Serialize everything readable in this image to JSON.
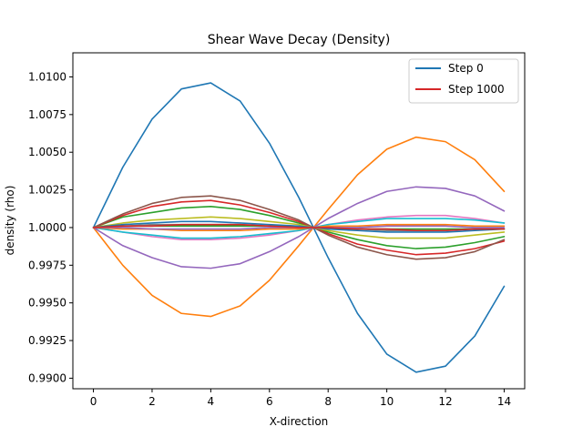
{
  "chart_data": {
    "type": "line",
    "title": "Shear Wave Decay (Density)",
    "xlabel": "X-direction",
    "ylabel": "density (rho)",
    "xlim": [
      -0.7,
      14.7
    ],
    "ylim": [
      0.9893,
      1.0116
    ],
    "xticks": [
      0,
      2,
      4,
      6,
      8,
      10,
      12,
      14
    ],
    "yticks": [
      0.99,
      0.9925,
      0.995,
      0.9975,
      1.0,
      1.0025,
      1.005,
      1.0075,
      1.01
    ],
    "ytick_labels": [
      "0.9900",
      "0.9925",
      "0.9950",
      "0.9975",
      "1.0000",
      "1.0025",
      "1.0050",
      "1.0075",
      "1.0100"
    ],
    "grid": false,
    "legend": {
      "placement": "top-right",
      "entries": [
        "Step 0",
        "Step 1000"
      ]
    },
    "x": [
      0,
      1,
      2,
      3,
      4,
      5,
      6,
      7,
      7.5,
      8,
      9,
      10,
      11,
      12,
      13,
      14
    ],
    "series": [
      {
        "name": "Step 0",
        "color": "#1f77b4",
        "values": [
          1.0,
          1.004,
          1.0072,
          1.0092,
          1.0096,
          1.0084,
          1.0056,
          1.002,
          1.0,
          0.998,
          0.9943,
          0.9916,
          0.9904,
          0.9908,
          0.9928,
          0.9961
        ]
      },
      {
        "color": "#ff7f0e",
        "values": [
          1.0,
          0.9975,
          0.9955,
          0.9943,
          0.9941,
          0.9948,
          0.9965,
          0.9988,
          1.0,
          1.0012,
          1.0035,
          1.0052,
          1.006,
          1.0057,
          1.0045,
          1.0024
        ]
      },
      {
        "color": "#2ca02c",
        "values": [
          1.0,
          1.0007,
          1.001,
          1.0013,
          1.0014,
          1.0012,
          1.0008,
          1.0003,
          1.0,
          0.9997,
          0.9992,
          0.9988,
          0.9986,
          0.9987,
          0.999,
          0.9994
        ]
      },
      {
        "color": "#d62728",
        "values": [
          1.0,
          1.0008,
          1.0014,
          1.0017,
          1.0018,
          1.0015,
          1.001,
          1.0004,
          1.0,
          0.9996,
          0.9989,
          0.9985,
          0.9982,
          0.9983,
          0.9986,
          0.9991
        ]
      },
      {
        "color": "#9467bd",
        "values": [
          1.0,
          0.9988,
          0.998,
          0.9974,
          0.9973,
          0.9976,
          0.9984,
          0.9994,
          1.0,
          1.0006,
          1.0016,
          1.0024,
          1.0027,
          1.0026,
          1.0021,
          1.0011
        ]
      },
      {
        "color": "#8c564b",
        "values": [
          1.0,
          1.0009,
          1.0016,
          1.002,
          1.0021,
          1.0018,
          1.0012,
          1.0005,
          1.0,
          0.9995,
          0.9987,
          0.9982,
          0.9979,
          0.998,
          0.9984,
          0.9992
        ]
      },
      {
        "color": "#e377c2",
        "values": [
          1.0,
          0.9997,
          0.9994,
          0.9992,
          0.9992,
          0.9993,
          0.9995,
          0.9998,
          1.0,
          1.0002,
          1.0005,
          1.0007,
          1.0008,
          1.0008,
          1.0006,
          1.0003
        ]
      },
      {
        "color": "#7f7f7f",
        "values": [
          1.0,
          1.0001,
          1.0002,
          1.0002,
          1.0002,
          1.0002,
          1.0001,
          1.0001,
          1.0,
          0.9999,
          0.9999,
          0.9998,
          0.9998,
          0.9998,
          0.9999,
          0.9999
        ]
      },
      {
        "color": "#bcbd22",
        "values": [
          1.0,
          1.0003,
          1.0005,
          1.0006,
          1.0007,
          1.0006,
          1.0004,
          1.0002,
          1.0,
          0.9998,
          0.9995,
          0.9993,
          0.9993,
          0.9993,
          0.9995,
          0.9997
        ]
      },
      {
        "color": "#17becf",
        "values": [
          1.0,
          0.9997,
          0.9995,
          0.9993,
          0.9993,
          0.9994,
          0.9996,
          0.9998,
          1.0,
          1.0002,
          1.0004,
          1.0006,
          1.0006,
          1.0006,
          1.0005,
          1.0003
        ]
      },
      {
        "color": "#1f77b4",
        "values": [
          1.0,
          1.0002,
          1.0003,
          1.0004,
          1.0004,
          1.0003,
          1.0002,
          1.0001,
          1.0,
          0.9999,
          0.9998,
          0.9997,
          0.9997,
          0.9997,
          0.9998,
          0.9999
        ]
      },
      {
        "color": "#ff7f0e",
        "values": [
          1.0,
          0.9999,
          0.9999,
          0.9998,
          0.9998,
          0.9998,
          0.9999,
          0.9999,
          1.0,
          1.0001,
          1.0001,
          1.0002,
          1.0002,
          1.0002,
          1.0001,
          1.0001
        ]
      },
      {
        "color": "#2ca02c",
        "values": [
          1.0,
          1.0001,
          1.0001,
          1.0001,
          1.0001,
          1.0001,
          1.0001,
          1.0,
          1.0,
          1.0,
          0.9999,
          0.9999,
          0.9999,
          0.9999,
          0.9999,
          0.9999
        ]
      },
      {
        "color": "#9467bd",
        "values": [
          1.0,
          1.0,
          0.9999,
          0.9999,
          0.9999,
          0.9999,
          1.0,
          1.0,
          1.0,
          1.0,
          1.0,
          1.0001,
          1.0001,
          1.0001,
          1.0,
          1.0
        ]
      },
      {
        "name": "Step 1000",
        "color": "#d62728",
        "values": [
          1.0,
          1.0001,
          1.0001,
          1.0002,
          1.0002,
          1.0002,
          1.0001,
          1.0,
          1.0,
          1.0,
          0.9999,
          0.9999,
          0.9998,
          0.9998,
          0.9999,
          0.9999
        ]
      }
    ]
  }
}
